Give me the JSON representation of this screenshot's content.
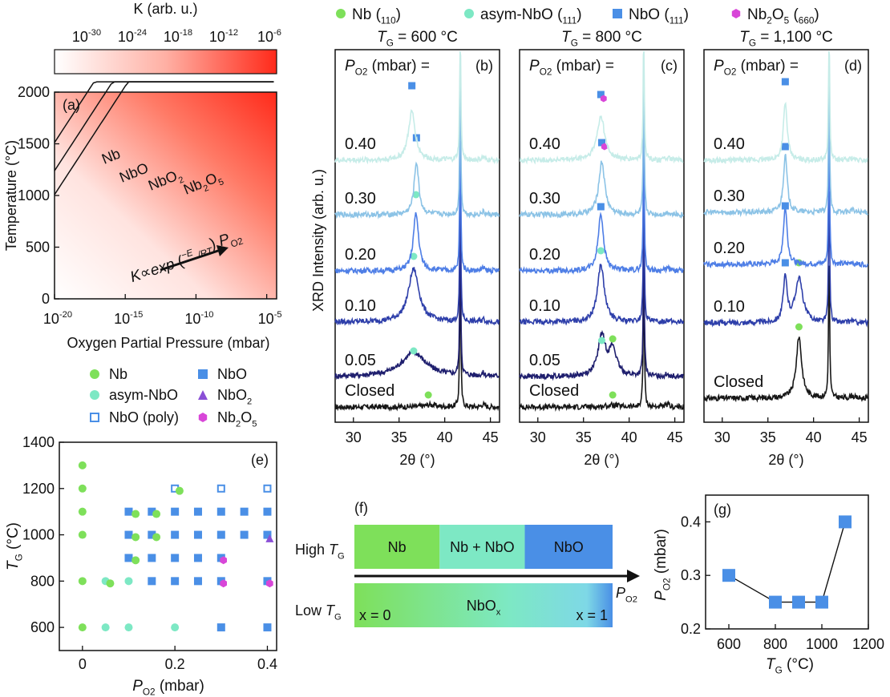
{
  "colors": {
    "nb": "#7ee05a",
    "asym": "#7de8c4",
    "nbo": "#4a8fe6",
    "nbo2": "#8a4fd6",
    "nb2o5": "#d846d8",
    "heat_hi": "#ff2a1a",
    "xrd": [
      "#171717",
      "#1f1f6e",
      "#2e3faa",
      "#4e7ee6",
      "#8cc3e6",
      "#c6ece8"
    ]
  },
  "legend_top": [
    {
      "label": "Nb (110)",
      "marker": "circle",
      "color_key": "nb"
    },
    {
      "label": "asym-NbO (111)",
      "marker": "circle",
      "color_key": "asym"
    },
    {
      "label": "NbO (111)",
      "marker": "square",
      "color_key": "nbo"
    },
    {
      "label": "Nb2O5 (660)",
      "marker": "hexagon",
      "color_key": "nb2o5"
    }
  ],
  "colorbar": {
    "title": "K (arb. u.)",
    "ticks": [
      "10^-30",
      "10^-24",
      "10^-18",
      "10^-12",
      "10^-6"
    ]
  },
  "chart_data": [
    {
      "panel": "a",
      "type": "heatmap",
      "panel_label": "(a)",
      "xlabel": "Oxygen Partial Pressure (mbar)",
      "ylabel": "Temperature (°C)",
      "xscale": "log",
      "xlim_exp": [
        -20,
        -4.3
      ],
      "xticks_exp": [
        -20,
        -15,
        -10,
        -5
      ],
      "ylim": [
        0,
        2000
      ],
      "yticks": [
        0,
        500,
        1000,
        1500,
        2000
      ],
      "boundaries": [
        {
          "name": "Nb/NbO",
          "p0_exp": -24.8,
          "coef": 0.00333,
          "label": "Nb"
        },
        {
          "name": "NbO/NbO2",
          "p0_exp": -25.9,
          "coef": 0.00333,
          "label": "NbO2"
        },
        {
          "name": "NbO2/Nb2O5",
          "p0_exp": -27.2,
          "coef": 0.00333,
          "label": "Nb2O5"
        }
      ],
      "region_labels": [
        "Nb",
        "NbO",
        "NbO2",
        "Nb2O5"
      ],
      "annotation": "K∝exp(−EA/RT)·PO2"
    },
    {
      "panel": "b",
      "type": "line",
      "panel_label": "(b)",
      "title": "TG = 600 °C",
      "header": "PO2 (mbar) =",
      "xlabel": "2θ (°)",
      "ylabel": "XRD Intensity (arb. u.)",
      "xlim": [
        28,
        46
      ],
      "xticks": [
        30,
        35,
        40,
        45
      ],
      "substrate_peak": 41.7,
      "series": [
        {
          "label": "Closed",
          "film_peak": 38.4,
          "film_amp": 0.05,
          "film_width": 0.8,
          "marker": "nb"
        },
        {
          "label": "0.05",
          "film_peak": 36.6,
          "film_amp": 0.55,
          "film_width": 1.6,
          "marker": "asym"
        },
        {
          "label": "0.10",
          "film_peak": 36.6,
          "film_amp": 1.2,
          "film_width": 0.7,
          "marker": "asym"
        },
        {
          "label": "0.20",
          "film_peak": 36.85,
          "film_amp": 1.3,
          "film_width": 0.35,
          "marker": "asym"
        },
        {
          "label": "0.30",
          "film_peak": 36.9,
          "film_amp": 1.2,
          "film_width": 0.3,
          "marker": "nbo"
        },
        {
          "label": "0.40",
          "film_peak": 36.4,
          "film_amp": 1.1,
          "film_width": 0.45,
          "marker": "nbo"
        }
      ]
    },
    {
      "panel": "c",
      "type": "line",
      "panel_label": "(c)",
      "title": "TG = 800 °C",
      "header": "PO2 (mbar) =",
      "xlabel": "2θ (°)",
      "xlim": [
        28,
        46
      ],
      "xticks": [
        30,
        35,
        40,
        45
      ],
      "substrate_peak": 41.6,
      "series": [
        {
          "label": "Closed",
          "film_peak": 38.2,
          "film_amp": 0.04,
          "film_width": 0.8,
          "marker": "nb"
        },
        {
          "label": "0.05",
          "film_peak": 37.0,
          "film_amp": 0.9,
          "film_width": 0.5,
          "marker": "asym+nb",
          "second_peak": 38.2,
          "second_amp": 0.6
        },
        {
          "label": "0.10",
          "film_peak": 36.9,
          "film_amp": 1.3,
          "film_width": 0.45,
          "marker": "asym"
        },
        {
          "label": "0.20",
          "film_peak": 36.9,
          "film_amp": 1.3,
          "film_width": 0.35,
          "marker": "nbo"
        },
        {
          "label": "0.30",
          "film_peak": 37.0,
          "film_amp": 1.2,
          "film_width": 0.4,
          "marker": "nbo+nb2o5"
        },
        {
          "label": "0.40",
          "film_peak": 36.9,
          "film_amp": 1.0,
          "film_width": 0.5,
          "marker": "nbo+nb2o5"
        }
      ]
    },
    {
      "panel": "d",
      "type": "line",
      "panel_label": "(d)",
      "title": "TG = 1,100 °C",
      "header": "PO2 (mbar) =",
      "xlabel": "2θ (°)",
      "xlim": [
        28,
        46
      ],
      "xticks": [
        30,
        35,
        40,
        45
      ],
      "substrate_peak": 41.7,
      "series": [
        {
          "label": "Closed",
          "film_peak": 38.4,
          "film_amp": 1.4,
          "film_width": 0.35,
          "marker": "nb"
        },
        {
          "label": "0.10",
          "film_peak": 36.9,
          "film_amp": 1.0,
          "film_width": 0.25,
          "marker": "nbo+nb",
          "second_peak": 38.4,
          "second_amp": 1.0
        },
        {
          "label": "0.20",
          "film_peak": 36.9,
          "film_amp": 1.3,
          "film_width": 0.25,
          "marker": "nbo"
        },
        {
          "label": "0.30",
          "film_peak": 36.9,
          "film_amp": 1.3,
          "film_width": 0.25,
          "marker": "nbo"
        },
        {
          "label": "0.40",
          "film_peak": 36.9,
          "film_amp": 1.3,
          "film_width": 0.25,
          "marker": "nbo"
        }
      ]
    },
    {
      "panel": "e",
      "type": "scatter",
      "panel_label": "(e)",
      "xlabel": "PO2 (mbar)",
      "ylabel": "TG (°C)",
      "xlim": [
        -0.05,
        0.42
      ],
      "ylim": [
        500,
        1400
      ],
      "xticks": [
        0,
        0.2,
        0.4
      ],
      "yticks": [
        600,
        800,
        1000,
        1200,
        1400
      ],
      "legend": [
        {
          "label": "Nb",
          "marker": "nb"
        },
        {
          "label": "asym-NbO",
          "marker": "asym"
        },
        {
          "label": "NbO (poly)",
          "marker": "nbo_poly"
        },
        {
          "label": "NbO",
          "marker": "nbo"
        },
        {
          "label": "NbO2",
          "marker": "nbo2"
        },
        {
          "label": "Nb2O5",
          "marker": "nb2o5"
        }
      ],
      "points": [
        {
          "x": 0,
          "y": 1300,
          "m": "nb"
        },
        {
          "x": 0,
          "y": 1200,
          "m": "nb"
        },
        {
          "x": 0,
          "y": 1100,
          "m": "nb"
        },
        {
          "x": 0,
          "y": 1000,
          "m": "nb"
        },
        {
          "x": 0,
          "y": 800,
          "m": "nb"
        },
        {
          "x": 0,
          "y": 600,
          "m": "nb"
        },
        {
          "x": 0.05,
          "y": 800,
          "m": "asym"
        },
        {
          "x": 0.06,
          "y": 790,
          "m": "nb"
        },
        {
          "x": 0.05,
          "y": 600,
          "m": "asym"
        },
        {
          "x": 0.1,
          "y": 600,
          "m": "asym"
        },
        {
          "x": 0.1,
          "y": 800,
          "m": "asym"
        },
        {
          "x": 0.1,
          "y": 1100,
          "m": "nbo"
        },
        {
          "x": 0.1,
          "y": 1000,
          "m": "nbo"
        },
        {
          "x": 0.1,
          "y": 900,
          "m": "nbo"
        },
        {
          "x": 0.115,
          "y": 1090,
          "m": "nb"
        },
        {
          "x": 0.115,
          "y": 990,
          "m": "nb"
        },
        {
          "x": 0.115,
          "y": 890,
          "m": "nb"
        },
        {
          "x": 0.15,
          "y": 1100,
          "m": "nbo"
        },
        {
          "x": 0.15,
          "y": 1000,
          "m": "nbo"
        },
        {
          "x": 0.15,
          "y": 900,
          "m": "nbo"
        },
        {
          "x": 0.16,
          "y": 1090,
          "m": "nb"
        },
        {
          "x": 0.16,
          "y": 990,
          "m": "nb"
        },
        {
          "x": 0.15,
          "y": 800,
          "m": "nbo"
        },
        {
          "x": 0.2,
          "y": 1200,
          "m": "nbo_poly"
        },
        {
          "x": 0.21,
          "y": 1190,
          "m": "nb"
        },
        {
          "x": 0.2,
          "y": 1100,
          "m": "nbo"
        },
        {
          "x": 0.2,
          "y": 1000,
          "m": "nbo"
        },
        {
          "x": 0.2,
          "y": 900,
          "m": "nbo"
        },
        {
          "x": 0.2,
          "y": 800,
          "m": "nbo"
        },
        {
          "x": 0.2,
          "y": 600,
          "m": "asym"
        },
        {
          "x": 0.25,
          "y": 1100,
          "m": "nbo"
        },
        {
          "x": 0.25,
          "y": 1000,
          "m": "nbo"
        },
        {
          "x": 0.25,
          "y": 900,
          "m": "nbo"
        },
        {
          "x": 0.25,
          "y": 800,
          "m": "nbo"
        },
        {
          "x": 0.3,
          "y": 1200,
          "m": "nbo_poly"
        },
        {
          "x": 0.3,
          "y": 1100,
          "m": "nbo"
        },
        {
          "x": 0.3,
          "y": 1000,
          "m": "nbo"
        },
        {
          "x": 0.3,
          "y": 900,
          "m": "nbo"
        },
        {
          "x": 0.305,
          "y": 890,
          "m": "nb2o5"
        },
        {
          "x": 0.3,
          "y": 800,
          "m": "nbo"
        },
        {
          "x": 0.305,
          "y": 790,
          "m": "nb2o5"
        },
        {
          "x": 0.3,
          "y": 600,
          "m": "nbo"
        },
        {
          "x": 0.35,
          "y": 1100,
          "m": "nbo"
        },
        {
          "x": 0.35,
          "y": 1000,
          "m": "nbo"
        },
        {
          "x": 0.4,
          "y": 1200,
          "m": "nbo_poly"
        },
        {
          "x": 0.4,
          "y": 1100,
          "m": "nbo"
        },
        {
          "x": 0.4,
          "y": 1000,
          "m": "nbo"
        },
        {
          "x": 0.405,
          "y": 985,
          "m": "nbo2"
        },
        {
          "x": 0.4,
          "y": 800,
          "m": "nbo"
        },
        {
          "x": 0.405,
          "y": 790,
          "m": "nb2o5"
        },
        {
          "x": 0.4,
          "y": 600,
          "m": "nbo"
        }
      ]
    },
    {
      "panel": "f",
      "type": "diagram",
      "panel_label": "(f)",
      "high_label": "High TG",
      "low_label": "Low TG",
      "high_segments": [
        {
          "label": "Nb",
          "frac": 0.33,
          "color_key": "nb"
        },
        {
          "label": "Nb + NbO",
          "frac": 0.33,
          "color_key": "asym"
        },
        {
          "label": "NbO",
          "frac": 0.34,
          "color_key": "nbo"
        }
      ],
      "low_label_center": "NbOx",
      "low_left": "x = 0",
      "low_right": "x = 1",
      "arrow_label": "PO2"
    },
    {
      "panel": "g",
      "type": "line",
      "panel_label": "(g)",
      "xlabel": "TG (°C)",
      "ylabel": "PO2 (mbar)",
      "xlim": [
        500,
        1200
      ],
      "ylim": [
        0.2,
        0.45
      ],
      "xticks": [
        600,
        800,
        1000,
        1200
      ],
      "yticks": [
        0.2,
        0.3,
        0.4
      ],
      "x": [
        600,
        800,
        900,
        1000,
        1100
      ],
      "y": [
        0.3,
        0.25,
        0.25,
        0.25,
        0.4
      ]
    }
  ]
}
